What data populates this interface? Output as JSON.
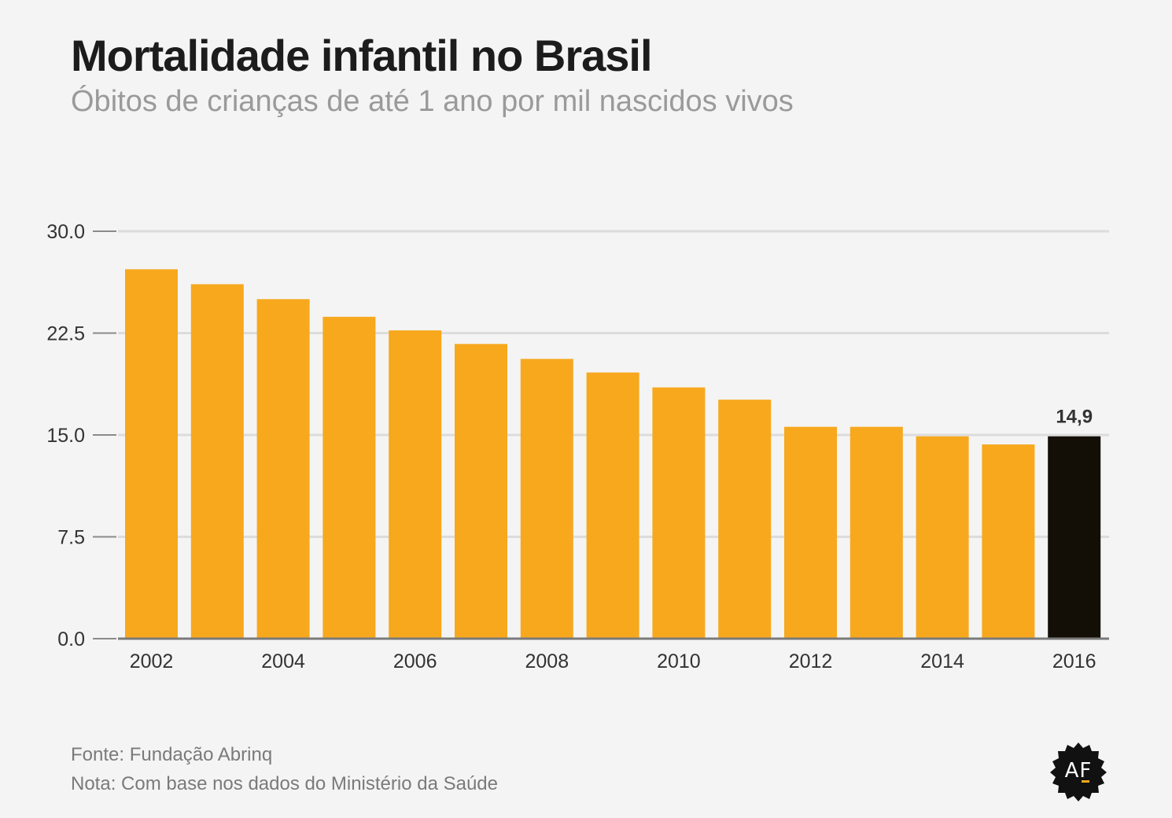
{
  "title": "Mortalidade infantil no Brasil",
  "subtitle": "Óbitos de crianças de até 1 ano por mil nascidos vivos",
  "footer": {
    "source": "Fonte: Fundação Abrinq",
    "note": "Nota: Com base nos dados do Ministério da Saúde"
  },
  "logo": {
    "text": "AF",
    "icon": "badge-logo"
  },
  "colors": {
    "bar": "#f7a81d",
    "highlight": "#140f06",
    "grid": "#dcdcdc",
    "axis": "#7a7a7a",
    "tick_text": "#333333"
  },
  "chart_data": {
    "type": "bar",
    "categories": [
      "2002",
      "2003",
      "2004",
      "2005",
      "2006",
      "2007",
      "2008",
      "2009",
      "2010",
      "2011",
      "2012",
      "2013",
      "2014",
      "2015",
      "2016"
    ],
    "values": [
      27.2,
      26.1,
      25.0,
      23.7,
      22.7,
      21.7,
      20.6,
      19.6,
      18.5,
      17.6,
      15.6,
      15.6,
      14.9,
      14.3,
      14.9
    ],
    "x_tick_labels": [
      "2002",
      "",
      "2004",
      "",
      "2006",
      "",
      "2008",
      "",
      "2010",
      "",
      "2012",
      "",
      "2014",
      "",
      "2016"
    ],
    "y_ticks": [
      0,
      7.5,
      15,
      22.5,
      30
    ],
    "y_tick_labels": [
      "0.0",
      "7.5",
      "15.0",
      "22.5",
      "30.0"
    ],
    "ylim": [
      0,
      30
    ],
    "highlight_index": 14,
    "highlight_label": "14,9",
    "grid": true,
    "xlabel": "",
    "ylabel": ""
  }
}
